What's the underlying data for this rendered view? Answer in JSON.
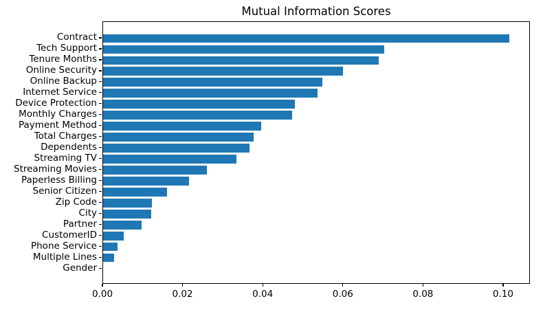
{
  "chart_data": {
    "type": "bar",
    "orientation": "horizontal",
    "title": "Mutual Information Scores",
    "xlabel": "",
    "ylabel": "",
    "categories": [
      "Contract",
      "Tech Support",
      "Tenure Months",
      "Online Security",
      "Online Backup",
      "Internet Service",
      "Device Protection",
      "Monthly Charges",
      "Payment Method",
      "Total Charges",
      "Dependents",
      "Streaming TV",
      "Streaming Movies",
      "Paperless Billing",
      "Senior Citizen",
      "Zip Code",
      "City",
      "Partner",
      "CustomerID",
      "Phone Service",
      "Multiple Lines",
      "Gender"
    ],
    "values": [
      0.1013,
      0.0702,
      0.0688,
      0.0598,
      0.0547,
      0.0535,
      0.0479,
      0.0471,
      0.0394,
      0.0375,
      0.0366,
      0.0333,
      0.0259,
      0.0215,
      0.0159,
      0.0122,
      0.012,
      0.0096,
      0.0051,
      0.0036,
      0.0027,
      0.0
    ],
    "xlim": [
      0,
      0.1067
    ],
    "x_ticks": [
      0.0,
      0.02,
      0.04,
      0.06,
      0.08,
      0.1
    ],
    "x_tick_labels": [
      "0.00",
      "0.02",
      "0.04",
      "0.06",
      "0.08",
      "0.10"
    ],
    "bar_color": "#1f77b4",
    "text_color": "#000000",
    "background_color": "#ffffff",
    "grid": false,
    "legend": null,
    "bar_height_fraction": 0.8
  }
}
